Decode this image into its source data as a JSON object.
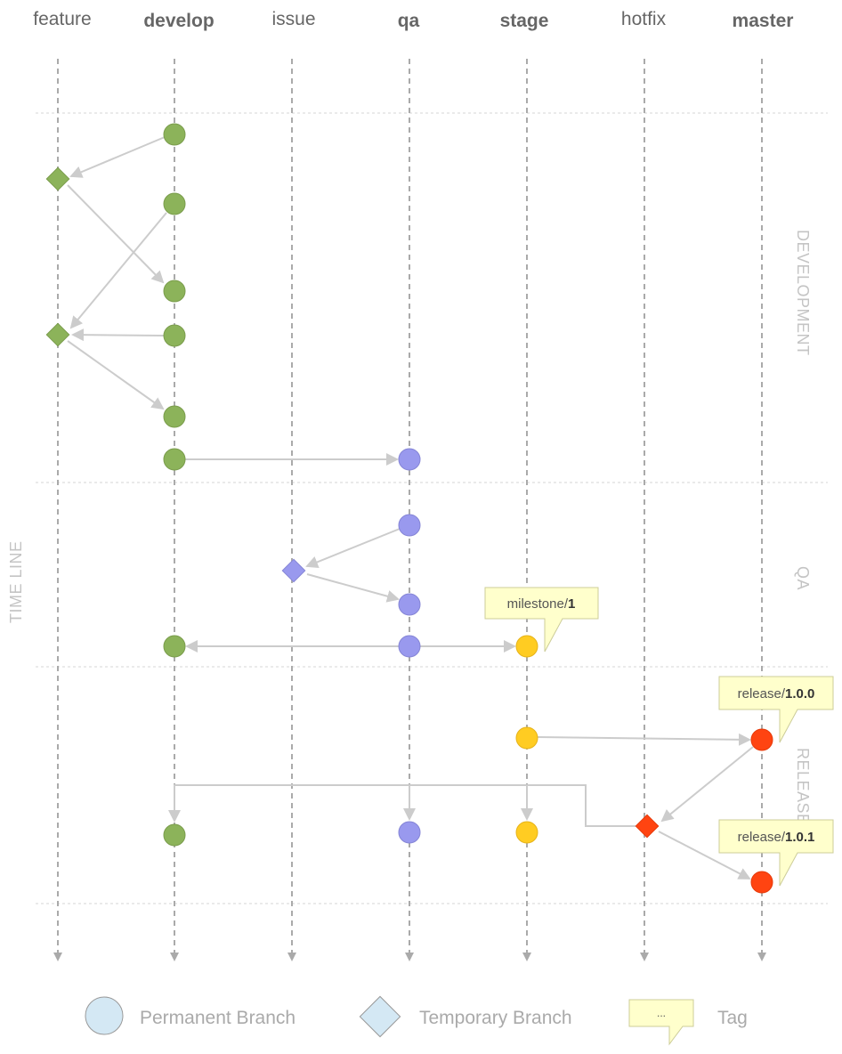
{
  "branches": [
    {
      "id": "feature",
      "label": "feature",
      "bold": false
    },
    {
      "id": "develop",
      "label": "develop",
      "bold": true
    },
    {
      "id": "issue",
      "label": "issue",
      "bold": false
    },
    {
      "id": "qa",
      "label": "qa",
      "bold": true
    },
    {
      "id": "stage",
      "label": "stage",
      "bold": true
    },
    {
      "id": "hotfix",
      "label": "hotfix",
      "bold": false
    },
    {
      "id": "master",
      "label": "master",
      "bold": true
    }
  ],
  "phases": {
    "development": "DEVELOPMENT",
    "qa": "QA",
    "release": "RELEASE"
  },
  "timeline_label": "TIME LINE",
  "tags": {
    "milestone": {
      "prefix": "milestone/",
      "value": "1"
    },
    "release_100": {
      "prefix": "release/",
      "value": "1.0.0"
    },
    "release_101": {
      "prefix": "release/",
      "value": "1.0.1"
    }
  },
  "legend": {
    "permanent": "Permanent Branch",
    "temporary": "Temporary Branch",
    "tag": "Tag",
    "tag_sample": "..."
  },
  "colors": {
    "develop_node": "#8cb35a",
    "qa_node": "#9999ee",
    "stage_node": "#ffcc22",
    "master_node": "#ff4411",
    "tag_fill": "#ffffcc",
    "legend_fill": "#d4e8f4"
  }
}
